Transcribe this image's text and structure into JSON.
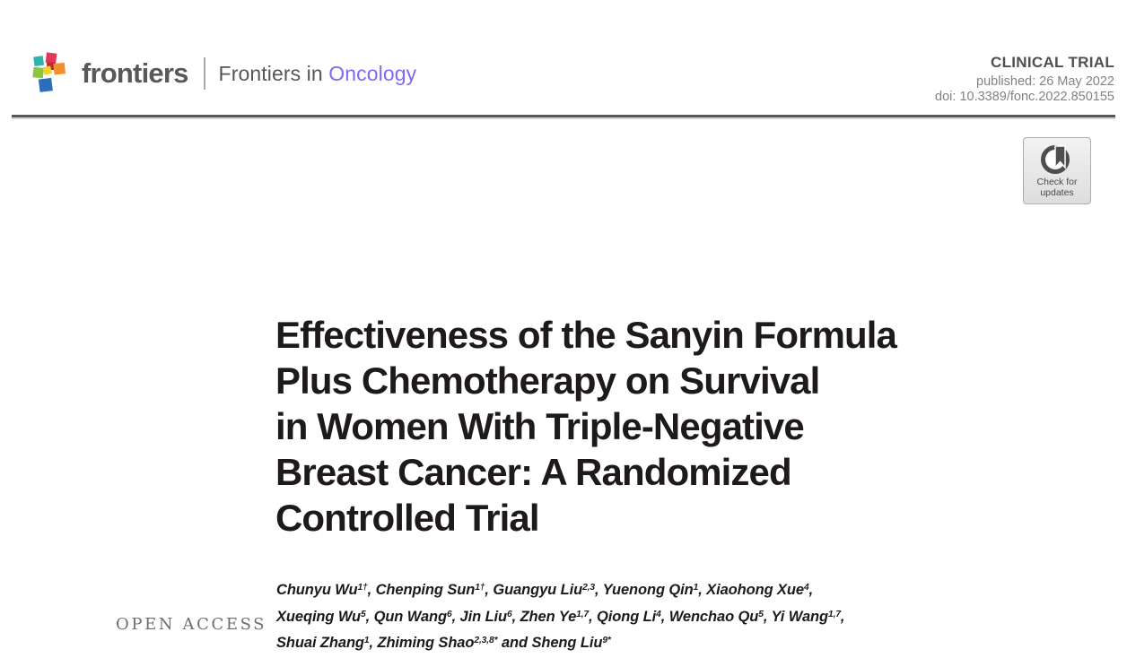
{
  "brand": {
    "wordmark": "frontiers",
    "journal_prefix": "Frontiers in ",
    "journal_name": "Oncology",
    "accent_color": "#7e6af0",
    "wordmark_color": "#58595b",
    "logo_icon": "frontiers-cubes-logo",
    "logo_colors": [
      "#2fb3ab",
      "#e13a59",
      "#c2272d",
      "#f2902e",
      "#8bc53f",
      "#f5d028",
      "#2a6db8"
    ]
  },
  "header": {
    "article_type": "CLINICAL TRIAL",
    "published": "published: 26 May 2022",
    "doi": "doi: 10.3389/fonc.2022.850155"
  },
  "badge": {
    "icon": "crossmark-bookmark-icon",
    "label": "Check for\nupdates"
  },
  "article": {
    "title": "Effectiveness of the Sanyin Formula\nPlus Chemotherapy on Survival\nin Women With Triple-Negative\nBreast Cancer: A Randomized\nControlled Trial",
    "title_color": "#1e1a1b"
  },
  "authors": {
    "lines": [
      [
        {
          "text": "Chunyu Wu",
          "sup": "1†"
        },
        {
          "text": ", Chenping Sun",
          "sup": "1†"
        },
        {
          "text": ", Guangyu Liu",
          "sup": "2,3"
        },
        {
          "text": ", Yuenong Qin",
          "sup": "1"
        },
        {
          "text": ", Xiaohong Xue",
          "sup": "4"
        },
        {
          "text": ",",
          "sup": ""
        }
      ],
      [
        {
          "text": "Xueqing Wu",
          "sup": "5"
        },
        {
          "text": ", Qun Wang",
          "sup": "6"
        },
        {
          "text": ", Jin Liu",
          "sup": "6"
        },
        {
          "text": ", Zhen Ye",
          "sup": "1,7"
        },
        {
          "text": ", Qiong Li",
          "sup": "4"
        },
        {
          "text": ", Wenchao Qu",
          "sup": "5"
        },
        {
          "text": ", Yi Wang",
          "sup": "1,7"
        },
        {
          "text": ",",
          "sup": ""
        }
      ],
      [
        {
          "text": "Shuai Zhang",
          "sup": "1"
        },
        {
          "text": ", Zhiming Shao",
          "sup": "2,3,8*"
        },
        {
          "text": " and Sheng Liu",
          "sup": "9*"
        }
      ]
    ]
  },
  "sidebar": {
    "open_access_label": "OPEN ACCESS"
  }
}
